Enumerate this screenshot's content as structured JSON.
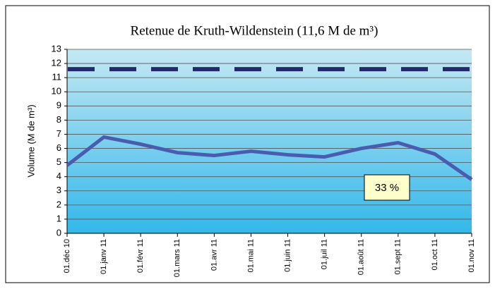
{
  "chart_data": {
    "type": "line",
    "title": "Retenue de Kruth-Wildenstein (11,6 M de m³)",
    "y_label": "Volume (M de m³)",
    "categories": [
      "01.déc 10",
      "01.janv 11",
      "01.févr 11",
      "01.mars 11",
      "01.avr 11",
      "01.mai 11",
      "01.juin 11",
      "01.juil 11",
      "01.août 11",
      "01.sept 11",
      "01.oct 11",
      "01.nov 11"
    ],
    "series": [
      {
        "color": "#4a5cb0",
        "values": [
          4.8,
          6.8,
          6.3,
          5.7,
          5.5,
          5.8,
          5.55,
          5.4,
          6.0,
          6.4,
          5.6,
          3.8
        ]
      }
    ],
    "reference_line": {
      "value": 11.6,
      "color": "#23296b"
    },
    "annotation": "33 %",
    "ylim": [
      0,
      13
    ],
    "yticks": [
      0,
      1,
      2,
      3,
      4,
      5,
      6,
      7,
      8,
      9,
      10,
      11,
      12,
      13
    ],
    "grid": true
  }
}
